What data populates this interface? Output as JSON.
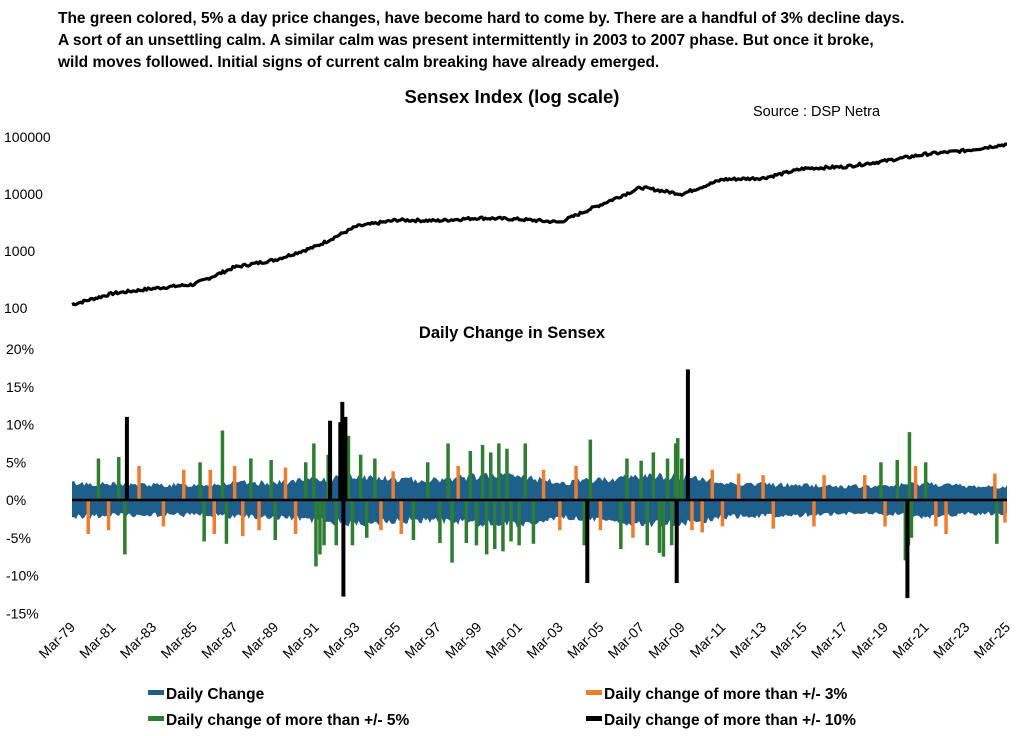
{
  "intro": {
    "lines": [
      "The green colored, 5% a day price changes, have become hard to come by. There are a handful of 3% decline days.",
      "A sort of an unsettling calm. A similar calm was present intermittently in 2003 to 2007 phase. But once it broke,",
      "wild moves followed. Initial signs of current calm breaking have already emerged."
    ]
  },
  "source": "Source : DSP Netra",
  "colors": {
    "daily": "#1f5f8b",
    "more3": "#ed7d31",
    "more5": "#2e7d32",
    "more10": "#000000",
    "index_line": "#000000"
  },
  "chart_data": [
    {
      "type": "line",
      "title": "Sensex Index (log scale)",
      "yscale": "log",
      "ylim": [
        100,
        100000
      ],
      "yticks": [
        "100",
        "1000",
        "10000",
        "100000"
      ],
      "x": [
        "Mar-79",
        "Mar-81",
        "Mar-83",
        "Mar-85",
        "Mar-87",
        "Mar-89",
        "Mar-91",
        "Mar-93",
        "Mar-95",
        "Mar-97",
        "Mar-99",
        "Mar-01",
        "Mar-03",
        "Mar-05",
        "Mar-07",
        "Mar-09",
        "Mar-11",
        "Mar-13",
        "Mar-15",
        "Mar-17",
        "Mar-19",
        "Mar-21",
        "Mar-23",
        "Mar-25"
      ],
      "series": [
        {
          "values": [
            115,
            180,
            220,
            260,
            520,
            700,
            1200,
            2700,
            3500,
            3400,
            3800,
            3600,
            3200,
            6500,
            13000,
            10000,
            18000,
            19000,
            28000,
            30000,
            38000,
            50000,
            58000,
            75000
          ]
        }
      ]
    },
    {
      "type": "bar",
      "title": "Daily Change in Sensex",
      "ylim": [
        -15,
        20
      ],
      "yticks": [
        "-15%",
        "-10%",
        "-5%",
        "0%",
        "5%",
        "10%",
        "15%",
        "20%"
      ],
      "x_ticks": [
        "Mar-79",
        "Mar-81",
        "Mar-83",
        "Mar-85",
        "Mar-87",
        "Mar-89",
        "Mar-91",
        "Mar-93",
        "Mar-95",
        "Mar-97",
        "Mar-99",
        "Mar-01",
        "Mar-03",
        "Mar-05",
        "Mar-07",
        "Mar-09",
        "Mar-11",
        "Mar-13",
        "Mar-15",
        "Mar-17",
        "Mar-19",
        "Mar-21",
        "Mar-23",
        "Mar-25"
      ],
      "legend": [
        {
          "label": "Daily Change",
          "color": "#1f5f8b"
        },
        {
          "label": "Daily change of more than +/- 3%",
          "color": "#ed7d31"
        },
        {
          "label": "Daily change of more than +/- 5%",
          "color": "#2e7d32"
        },
        {
          "label": "Daily change of more than +/- 10%",
          "color": "#000000"
        }
      ],
      "band": {
        "name": "Daily Change",
        "years": [
          1979,
          1981,
          1983,
          1985,
          1987,
          1989,
          1991,
          1993,
          1995,
          1997,
          1999,
          2001,
          2003,
          2005,
          2007,
          2009,
          2011,
          2013,
          2015,
          2017,
          2019,
          2021,
          2023,
          2025
        ],
        "amplitude": [
          2.5,
          2.3,
          2.2,
          2.2,
          2.5,
          2.5,
          3.0,
          3.5,
          3.0,
          3.0,
          3.5,
          3.5,
          2.5,
          3.0,
          3.5,
          3.5,
          2.5,
          2.3,
          2.2,
          2.0,
          2.0,
          2.5,
          2.0,
          2.0
        ]
      },
      "events": [
        {
          "year": 1979.8,
          "v": -4.5,
          "band": 3
        },
        {
          "year": 1980.3,
          "v": 5.5,
          "band": 5
        },
        {
          "year": 1980.8,
          "v": -4,
          "band": 3
        },
        {
          "year": 1981.3,
          "v": 5.7,
          "band": 5
        },
        {
          "year": 1981.6,
          "v": -7.2,
          "band": 5
        },
        {
          "year": 1981.7,
          "v": 11,
          "band": 10
        },
        {
          "year": 1982.3,
          "v": 4.5,
          "band": 3
        },
        {
          "year": 1983.5,
          "v": -3.5,
          "band": 3
        },
        {
          "year": 1984.5,
          "v": 4,
          "band": 3
        },
        {
          "year": 1985.3,
          "v": 5,
          "band": 5
        },
        {
          "year": 1985.5,
          "v": -5.5,
          "band": 5
        },
        {
          "year": 1985.8,
          "v": 4,
          "band": 3
        },
        {
          "year": 1986.0,
          "v": -4.5,
          "band": 3
        },
        {
          "year": 1986.4,
          "v": 9.2,
          "band": 5
        },
        {
          "year": 1986.6,
          "v": -5.8,
          "band": 5
        },
        {
          "year": 1987.0,
          "v": 4.5,
          "band": 3
        },
        {
          "year": 1987.4,
          "v": -4.8,
          "band": 3
        },
        {
          "year": 1987.8,
          "v": 5.5,
          "band": 5
        },
        {
          "year": 1988.2,
          "v": -4,
          "band": 3
        },
        {
          "year": 1988.8,
          "v": 5.3,
          "band": 5
        },
        {
          "year": 1989.0,
          "v": -5.3,
          "band": 5
        },
        {
          "year": 1989.5,
          "v": 4.3,
          "band": 3
        },
        {
          "year": 1990.0,
          "v": -4.5,
          "band": 3
        },
        {
          "year": 1990.5,
          "v": 5,
          "band": 5
        },
        {
          "year": 1990.9,
          "v": 7.5,
          "band": 5
        },
        {
          "year": 1991.0,
          "v": -8.8,
          "band": 5
        },
        {
          "year": 1991.2,
          "v": -7.2,
          "band": 5
        },
        {
          "year": 1991.4,
          "v": -6,
          "band": 5
        },
        {
          "year": 1991.6,
          "v": 6,
          "band": 5
        },
        {
          "year": 1991.7,
          "v": 10.5,
          "band": 10
        },
        {
          "year": 1992.0,
          "v": -6,
          "band": 5
        },
        {
          "year": 1992.2,
          "v": 10.3,
          "band": 10
        },
        {
          "year": 1992.3,
          "v": 13,
          "band": 10
        },
        {
          "year": 1992.35,
          "v": -12.8,
          "band": 10
        },
        {
          "year": 1992.45,
          "v": 11,
          "band": 10
        },
        {
          "year": 1992.6,
          "v": 8.5,
          "band": 5
        },
        {
          "year": 1992.8,
          "v": -6,
          "band": 5
        },
        {
          "year": 1993.2,
          "v": 6,
          "band": 5
        },
        {
          "year": 1993.5,
          "v": -5,
          "band": 5
        },
        {
          "year": 1993.9,
          "v": 5.5,
          "band": 5
        },
        {
          "year": 1994.2,
          "v": -4,
          "band": 3
        },
        {
          "year": 1994.8,
          "v": 3.8,
          "band": 3
        },
        {
          "year": 1995.2,
          "v": -4.5,
          "band": 3
        },
        {
          "year": 1995.8,
          "v": -5.3,
          "band": 5
        },
        {
          "year": 1996.5,
          "v": 5,
          "band": 5
        },
        {
          "year": 1997.1,
          "v": -5.7,
          "band": 5
        },
        {
          "year": 1997.5,
          "v": 7.5,
          "band": 5
        },
        {
          "year": 1997.7,
          "v": -8.3,
          "band": 5
        },
        {
          "year": 1998.0,
          "v": 4.5,
          "band": 3
        },
        {
          "year": 1998.4,
          "v": -5.7,
          "band": 5
        },
        {
          "year": 1998.6,
          "v": 6.5,
          "band": 5
        },
        {
          "year": 1998.9,
          "v": -6,
          "band": 5
        },
        {
          "year": 1999.2,
          "v": 7.3,
          "band": 5
        },
        {
          "year": 1999.4,
          "v": -7.2,
          "band": 5
        },
        {
          "year": 1999.6,
          "v": 6.3,
          "band": 5
        },
        {
          "year": 1999.8,
          "v": -6.5,
          "band": 5
        },
        {
          "year": 2000.0,
          "v": 7.5,
          "band": 5
        },
        {
          "year": 2000.2,
          "v": -6.8,
          "band": 5
        },
        {
          "year": 2000.4,
          "v": 6.8,
          "band": 5
        },
        {
          "year": 2000.6,
          "v": -5.5,
          "band": 5
        },
        {
          "year": 2001.0,
          "v": -6,
          "band": 5
        },
        {
          "year": 2001.3,
          "v": 7.5,
          "band": 5
        },
        {
          "year": 2001.7,
          "v": -5.8,
          "band": 5
        },
        {
          "year": 2002.2,
          "v": 4,
          "band": 3
        },
        {
          "year": 2003.0,
          "v": -4,
          "band": 3
        },
        {
          "year": 2003.8,
          "v": 4.5,
          "band": 3
        },
        {
          "year": 2004.2,
          "v": -6,
          "band": 5
        },
        {
          "year": 2004.35,
          "v": -11,
          "band": 10
        },
        {
          "year": 2004.5,
          "v": 8,
          "band": 5
        },
        {
          "year": 2005.0,
          "v": -4,
          "band": 3
        },
        {
          "year": 2006.0,
          "v": -6.5,
          "band": 5
        },
        {
          "year": 2006.3,
          "v": 5.5,
          "band": 5
        },
        {
          "year": 2006.6,
          "v": -5,
          "band": 3
        },
        {
          "year": 2007.0,
          "v": 5.2,
          "band": 5
        },
        {
          "year": 2007.3,
          "v": -6,
          "band": 5
        },
        {
          "year": 2007.6,
          "v": 6.3,
          "band": 5
        },
        {
          "year": 2007.9,
          "v": -7,
          "band": 5
        },
        {
          "year": 2008.1,
          "v": -7.5,
          "band": 5
        },
        {
          "year": 2008.3,
          "v": 5.5,
          "band": 5
        },
        {
          "year": 2008.5,
          "v": -6,
          "band": 5
        },
        {
          "year": 2008.7,
          "v": 7.5,
          "band": 5
        },
        {
          "year": 2008.75,
          "v": -11,
          "band": 10
        },
        {
          "year": 2008.8,
          "v": 8.2,
          "band": 5
        },
        {
          "year": 2009.0,
          "v": 5.5,
          "band": 5
        },
        {
          "year": 2009.3,
          "v": 17.3,
          "band": 10
        },
        {
          "year": 2009.5,
          "v": -4,
          "band": 3
        },
        {
          "year": 2010.0,
          "v": -4.3,
          "band": 3
        },
        {
          "year": 2010.5,
          "v": 4,
          "band": 3
        },
        {
          "year": 2011.0,
          "v": -3.5,
          "band": 3
        },
        {
          "year": 2011.8,
          "v": 3.5,
          "band": 3
        },
        {
          "year": 2013.0,
          "v": 3.3,
          "band": 3
        },
        {
          "year": 2013.5,
          "v": -3.8,
          "band": 3
        },
        {
          "year": 2015.5,
          "v": -3.5,
          "band": 3
        },
        {
          "year": 2016.0,
          "v": 3.3,
          "band": 3
        },
        {
          "year": 2018.0,
          "v": 3.3,
          "band": 3
        },
        {
          "year": 2018.8,
          "v": 5,
          "band": 5
        },
        {
          "year": 2019.0,
          "v": -3.5,
          "band": 3
        },
        {
          "year": 2019.6,
          "v": 5.3,
          "band": 5
        },
        {
          "year": 2020.0,
          "v": -8,
          "band": 5
        },
        {
          "year": 2020.1,
          "v": -13,
          "band": 10
        },
        {
          "year": 2020.15,
          "v": -6,
          "band": 5
        },
        {
          "year": 2020.2,
          "v": 9,
          "band": 5
        },
        {
          "year": 2020.3,
          "v": -5,
          "band": 5
        },
        {
          "year": 2020.5,
          "v": 4.5,
          "band": 3
        },
        {
          "year": 2021.0,
          "v": 5,
          "band": 5
        },
        {
          "year": 2021.5,
          "v": -3.5,
          "band": 3
        },
        {
          "year": 2022.0,
          "v": -4.5,
          "band": 3
        },
        {
          "year": 2024.4,
          "v": 3.5,
          "band": 3
        },
        {
          "year": 2024.5,
          "v": -5.8,
          "band": 5
        },
        {
          "year": 2024.9,
          "v": -3,
          "band": 3
        }
      ]
    }
  ]
}
